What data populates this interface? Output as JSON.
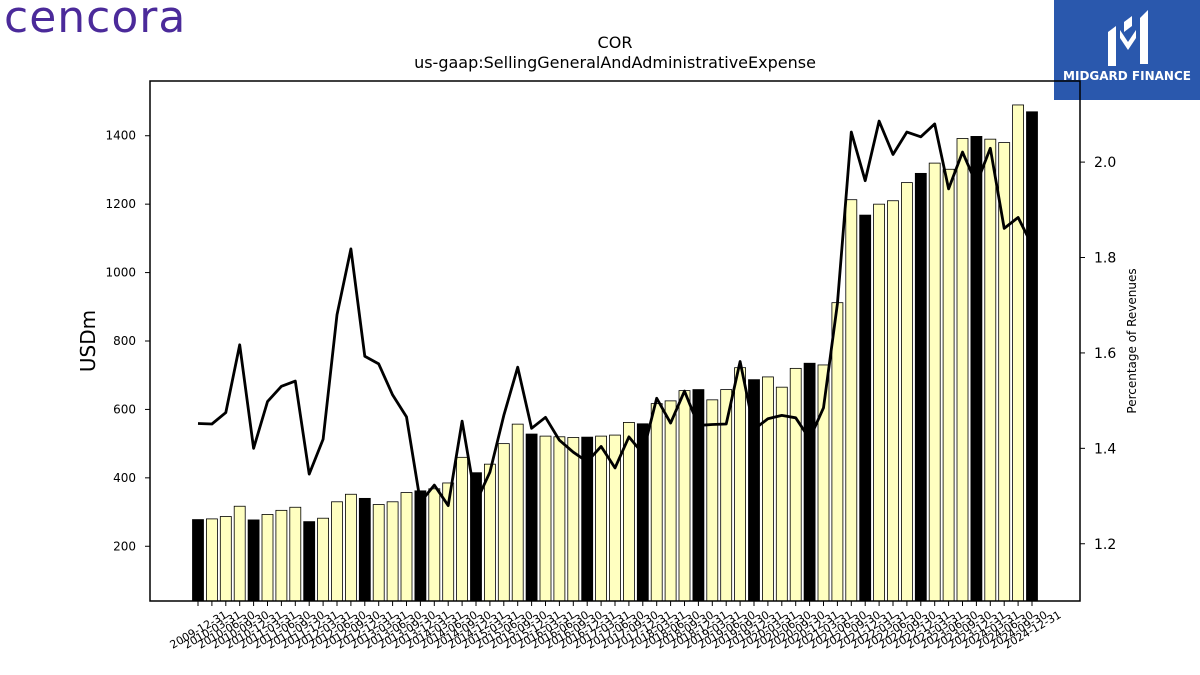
{
  "branding": {
    "company": "cencora",
    "logo_text": "MIDGARD FINANCE"
  },
  "colors": {
    "bar_fill": "#ffffc0",
    "bar_fill_q4": "#000000",
    "bar_edge": "#000000",
    "line": "#000000",
    "company_brand": "#4b2a9a",
    "logo_bg": "#2a58ad"
  },
  "chart_data": {
    "type": "bar",
    "title": "COR",
    "subtitle": "us-gaap:SellingGeneralAndAdministrativeExpense",
    "ylabel": "USDm",
    "y2label": "Percentage of Revenues",
    "ylim": [
      40,
      1560
    ],
    "y2lim": [
      1.08,
      2.17
    ],
    "yticks": [
      200,
      400,
      600,
      800,
      1000,
      1200,
      1400
    ],
    "y2ticks": [
      1.2,
      1.4,
      1.6,
      1.8,
      2.0
    ],
    "grid": false,
    "categories": [
      "2009-12-31",
      "2010-03-31",
      "2010-06-30",
      "2010-09-30",
      "2010-12-31",
      "2011-03-31",
      "2011-06-30",
      "2011-09-30",
      "2011-12-31",
      "2012-03-31",
      "2012-06-30",
      "2012-09-30",
      "2012-12-31",
      "2013-03-31",
      "2013-06-30",
      "2013-09-30",
      "2013-12-31",
      "2014-03-31",
      "2014-06-30",
      "2014-09-30",
      "2014-12-31",
      "2015-03-31",
      "2015-06-30",
      "2015-09-30",
      "2015-12-31",
      "2016-03-31",
      "2016-06-30",
      "2016-09-30",
      "2016-12-31",
      "2017-03-31",
      "2017-06-30",
      "2017-09-30",
      "2017-12-31",
      "2018-03-31",
      "2018-06-30",
      "2018-09-30",
      "2018-12-31",
      "2019-03-31",
      "2019-06-30",
      "2019-09-30",
      "2019-12-31",
      "2020-03-31",
      "2020-06-30",
      "2020-09-30",
      "2020-12-31",
      "2021-03-31",
      "2021-06-30",
      "2021-09-30",
      "2021-12-31",
      "2022-03-31",
      "2022-06-30",
      "2022-09-30",
      "2022-12-31",
      "2023-03-31",
      "2023-06-30",
      "2023-09-30",
      "2023-12-31",
      "2024-03-31",
      "2024-06-30",
      "2024-09-30",
      "2024-12-31"
    ],
    "xtick_labels": [
      "2009-12-31",
      "2010-03-31",
      "2010-06-30",
      "2010-09-30",
      "2010-12-31",
      "2011-03-31",
      "2011-06-30",
      "2011-09-30",
      "2011-12-31",
      "2012-03-31",
      "2012-06-30",
      "2012-09-30",
      "2012-12-31",
      "2013-03-31",
      "2013-06-30",
      "2013-09-30",
      "2013-12-31",
      "2014-03-31",
      "2014-06-30",
      "2014-09-30",
      "2014-12-31",
      "2015-03-31",
      "2015-06-30",
      "2015-09-30",
      "2015-12-31",
      "2016-03-31",
      "2016-06-30",
      "2016-09-30",
      "2016-12-31",
      "2017-03-31",
      "2017-06-30",
      "2017-09-30",
      "2017-12-31",
      "2018-03-31",
      "2018-06-30",
      "2018-09-30",
      "2018-12-31",
      "2019-03-31",
      "2019-06-30",
      "2019-09-30",
      "2019-12-31",
      "2020-03-31",
      "2020-06-30",
      "2020-09-30",
      "2020-12-31",
      "2021-03-31",
      "2021-06-30",
      "2021-09-30",
      "2021-12-31",
      "2022-03-31",
      "2022-06-30",
      "2022-09-30",
      "2022-12-31",
      "2023-03-31",
      "2023-06-30",
      "2023-09-30",
      "2023-12-31",
      "2024-03-31",
      "2024-06-30",
      "2024-09-30",
      "2024-12-31"
    ],
    "series": [
      {
        "type": "bar",
        "axis": "left",
        "values": [
          278,
          280,
          287,
          317,
          277,
          293,
          305,
          314,
          272,
          282,
          330,
          352,
          340,
          322,
          330,
          357,
          362,
          368,
          385,
          460,
          415,
          440,
          500,
          557,
          528,
          522,
          520,
          518,
          519,
          522,
          525,
          562,
          558,
          617,
          625,
          655,
          658,
          628,
          658,
          722,
          687,
          695,
          665,
          720,
          735,
          730,
          912,
          1213,
          1168,
          1200,
          1210,
          1263,
          1290,
          1320,
          1302,
          1392,
          1398,
          1390,
          1380,
          1490,
          1470
        ],
        "highlight_q4": true
      },
      {
        "type": "line",
        "axis": "right",
        "values": [
          1.452,
          1.451,
          1.475,
          1.617,
          1.4,
          1.498,
          1.53,
          1.541,
          1.346,
          1.419,
          1.68,
          1.818,
          1.593,
          1.577,
          1.512,
          1.466,
          1.287,
          1.323,
          1.28,
          1.457,
          1.287,
          1.35,
          1.469,
          1.57,
          1.442,
          1.465,
          1.417,
          1.392,
          1.372,
          1.404,
          1.359,
          1.424,
          1.389,
          1.505,
          1.453,
          1.52,
          1.448,
          1.45,
          1.451,
          1.582,
          1.44,
          1.462,
          1.469,
          1.464,
          1.42,
          1.485,
          1.703,
          2.063,
          1.961,
          2.086,
          2.016,
          2.063,
          2.053,
          2.08,
          1.944,
          2.021,
          1.954,
          2.029,
          1.861,
          1.884,
          1.826
        ]
      }
    ]
  }
}
